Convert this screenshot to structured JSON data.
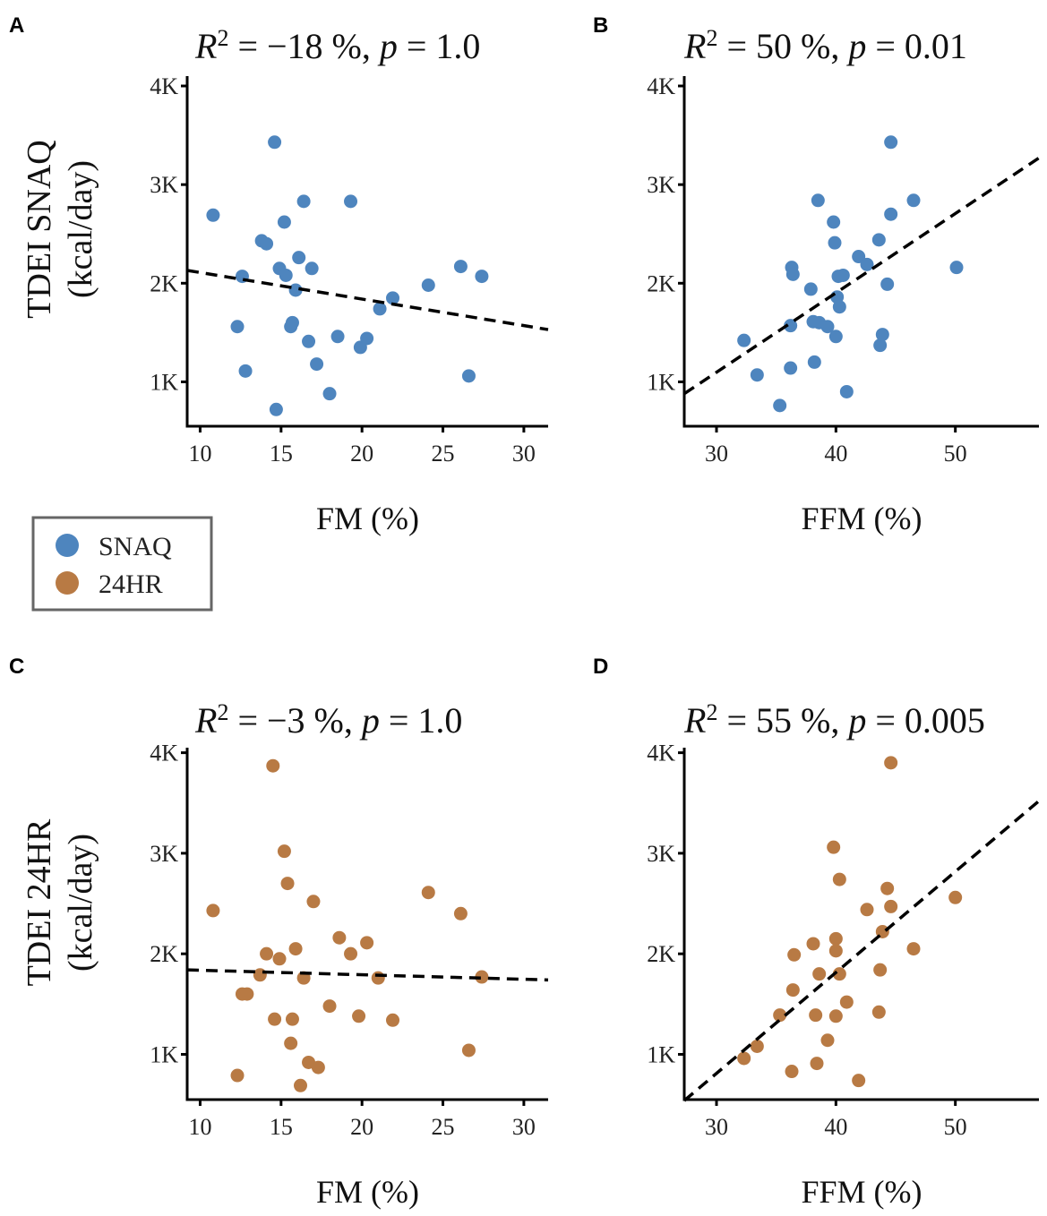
{
  "figure": {
    "row_labels": {
      "top": {
        "line1": "TDEI SNAQ",
        "line2": "(kcal/day)"
      },
      "bottom": {
        "line1": "TDEI 24HR",
        "line2": "(kcal/day)"
      }
    },
    "legend": {
      "items": [
        {
          "label": "SNAQ",
          "color": "#4E85BE"
        },
        {
          "label": "24HR",
          "color": "#B87A44"
        }
      ]
    }
  },
  "chart_data": [
    {
      "panel": "A",
      "type": "scatter",
      "title": {
        "r": "R",
        "sup": "2",
        "rest": " = −18 %, ",
        "p": "p",
        "pval": " = 1.0"
      },
      "xlabel": "FM (%)",
      "ylabel": "TDEI SNAQ (kcal/day)",
      "xlim": [
        9.2,
        31.5
      ],
      "ylim": [
        550,
        4100
      ],
      "xticks": [
        10,
        15,
        20,
        25,
        30
      ],
      "xtick_labels": [
        "10",
        "15",
        "20",
        "25",
        "30"
      ],
      "yticks": [
        1000,
        2000,
        3000,
        4000
      ],
      "ytick_labels": [
        "1K",
        "2K",
        "3K",
        "4K"
      ],
      "series_color": "#4E85BE",
      "series_name": "SNAQ",
      "trendline": {
        "x": [
          9.2,
          31.5
        ],
        "y": [
          2130,
          1530
        ]
      },
      "points": [
        [
          10.8,
          2690
        ],
        [
          12.3,
          1560
        ],
        [
          12.6,
          2070
        ],
        [
          12.8,
          1110
        ],
        [
          13.8,
          2430
        ],
        [
          14.1,
          2400
        ],
        [
          14.6,
          3430
        ],
        [
          14.7,
          720
        ],
        [
          14.9,
          2150
        ],
        [
          15.2,
          2620
        ],
        [
          15.3,
          2080
        ],
        [
          15.6,
          1560
        ],
        [
          15.7,
          1600
        ],
        [
          15.9,
          1930
        ],
        [
          16.1,
          2260
        ],
        [
          16.4,
          2830
        ],
        [
          16.7,
          1410
        ],
        [
          16.9,
          2150
        ],
        [
          17.2,
          1180
        ],
        [
          18.0,
          880
        ],
        [
          18.5,
          1460
        ],
        [
          19.3,
          2830
        ],
        [
          19.9,
          1350
        ],
        [
          20.3,
          1440
        ],
        [
          21.1,
          1740
        ],
        [
          21.9,
          1850
        ],
        [
          24.1,
          1980
        ],
        [
          26.1,
          2170
        ],
        [
          26.6,
          1060
        ],
        [
          27.4,
          2070
        ]
      ]
    },
    {
      "panel": "B",
      "type": "scatter",
      "title": {
        "r": "R",
        "sup": "2",
        "rest": " = 50 %, ",
        "p": "p",
        "pval": " = 0.01"
      },
      "xlabel": "FFM (%)",
      "ylabel": "TDEI SNAQ (kcal/day)",
      "xlim": [
        27.3,
        57.0
      ],
      "ylim": [
        550,
        4100
      ],
      "xticks": [
        30,
        40,
        50
      ],
      "xtick_labels": [
        "30",
        "40",
        "50"
      ],
      "yticks": [
        1000,
        2000,
        3000,
        4000
      ],
      "ytick_labels": [
        "1K",
        "2K",
        "3K",
        "4K"
      ],
      "series_color": "#4E85BE",
      "series_name": "SNAQ",
      "trendline": {
        "x": [
          27.3,
          57.0
        ],
        "y": [
          880,
          3270
        ]
      },
      "points": [
        [
          32.3,
          1420
        ],
        [
          33.4,
          1070
        ],
        [
          35.3,
          760
        ],
        [
          36.2,
          1140
        ],
        [
          36.2,
          1570
        ],
        [
          36.3,
          2160
        ],
        [
          36.4,
          2090
        ],
        [
          37.9,
          1940
        ],
        [
          38.1,
          1610
        ],
        [
          38.2,
          1200
        ],
        [
          38.5,
          2840
        ],
        [
          38.6,
          1600
        ],
        [
          39.3,
          1560
        ],
        [
          39.8,
          2620
        ],
        [
          39.9,
          2410
        ],
        [
          40.0,
          1460
        ],
        [
          40.1,
          1860
        ],
        [
          40.2,
          2070
        ],
        [
          40.3,
          1760
        ],
        [
          40.6,
          2080
        ],
        [
          40.9,
          900
        ],
        [
          41.9,
          2270
        ],
        [
          42.6,
          2190
        ],
        [
          43.6,
          2440
        ],
        [
          43.7,
          1370
        ],
        [
          43.9,
          1480
        ],
        [
          44.3,
          1990
        ],
        [
          44.6,
          2700
        ],
        [
          44.6,
          3430
        ],
        [
          46.5,
          2840
        ],
        [
          50.1,
          2160
        ]
      ]
    },
    {
      "panel": "C",
      "type": "scatter",
      "title": {
        "r": "R",
        "sup": "2",
        "rest": " = −3 %, ",
        "p": "p",
        "pval": " = 1.0"
      },
      "xlabel": "FM (%)",
      "ylabel": "TDEI 24HR (kcal/day)",
      "xlim": [
        9.2,
        31.5
      ],
      "ylim": [
        550,
        4050
      ],
      "xticks": [
        10,
        15,
        20,
        25,
        30
      ],
      "xtick_labels": [
        "10",
        "15",
        "20",
        "25",
        "30"
      ],
      "yticks": [
        1000,
        2000,
        3000,
        4000
      ],
      "ytick_labels": [
        "1K",
        "2K",
        "3K",
        "4K"
      ],
      "series_color": "#B87A44",
      "series_name": "24HR",
      "trendline": {
        "x": [
          9.2,
          31.5
        ],
        "y": [
          1840,
          1740
        ]
      },
      "points": [
        [
          10.8,
          2430
        ],
        [
          12.3,
          790
        ],
        [
          12.6,
          1600
        ],
        [
          12.9,
          1600
        ],
        [
          13.7,
          1790
        ],
        [
          14.1,
          2000
        ],
        [
          14.5,
          3870
        ],
        [
          14.6,
          1350
        ],
        [
          14.9,
          1950
        ],
        [
          15.2,
          3020
        ],
        [
          15.4,
          2700
        ],
        [
          15.6,
          1110
        ],
        [
          15.7,
          1350
        ],
        [
          15.9,
          2050
        ],
        [
          16.2,
          690
        ],
        [
          16.4,
          1760
        ],
        [
          16.7,
          920
        ],
        [
          17.0,
          2520
        ],
        [
          17.3,
          870
        ],
        [
          18.0,
          1480
        ],
        [
          18.6,
          2160
        ],
        [
          19.3,
          2000
        ],
        [
          19.8,
          1380
        ],
        [
          20.3,
          2110
        ],
        [
          21.0,
          1760
        ],
        [
          21.9,
          1340
        ],
        [
          24.1,
          2610
        ],
        [
          26.1,
          2400
        ],
        [
          26.6,
          1040
        ],
        [
          27.4,
          1770
        ]
      ]
    },
    {
      "panel": "D",
      "type": "scatter",
      "title": {
        "r": "R",
        "sup": "2",
        "rest": " = 55 %, ",
        "p": "p",
        "pval": " = 0.005"
      },
      "xlabel": "FFM (%)",
      "ylabel": "TDEI 24HR (kcal/day)",
      "xlim": [
        27.3,
        57.0
      ],
      "ylim": [
        550,
        4050
      ],
      "xticks": [
        30,
        40,
        50
      ],
      "xtick_labels": [
        "30",
        "40",
        "50"
      ],
      "yticks": [
        1000,
        2000,
        3000,
        4000
      ],
      "ytick_labels": [
        "1K",
        "2K",
        "3K",
        "4K"
      ],
      "series_color": "#B87A44",
      "series_name": "24HR",
      "trendline": {
        "x": [
          27.3,
          57.0
        ],
        "y": [
          540,
          3520
        ]
      },
      "points": [
        [
          32.3,
          960
        ],
        [
          33.4,
          1080
        ],
        [
          35.3,
          1390
        ],
        [
          36.3,
          830
        ],
        [
          36.4,
          1640
        ],
        [
          36.5,
          1990
        ],
        [
          38.1,
          2100
        ],
        [
          38.3,
          1390
        ],
        [
          38.4,
          910
        ],
        [
          38.6,
          1800
        ],
        [
          39.3,
          1140
        ],
        [
          39.8,
          3060
        ],
        [
          40.0,
          2030
        ],
        [
          40.0,
          2150
        ],
        [
          40.0,
          1380
        ],
        [
          40.3,
          2740
        ],
        [
          40.3,
          1800
        ],
        [
          40.9,
          1520
        ],
        [
          41.9,
          740
        ],
        [
          42.6,
          2440
        ],
        [
          43.6,
          1420
        ],
        [
          43.7,
          1840
        ],
        [
          43.9,
          2220
        ],
        [
          44.3,
          2650
        ],
        [
          44.6,
          2470
        ],
        [
          44.6,
          3900
        ],
        [
          46.5,
          2050
        ],
        [
          50.0,
          2560
        ]
      ]
    }
  ]
}
